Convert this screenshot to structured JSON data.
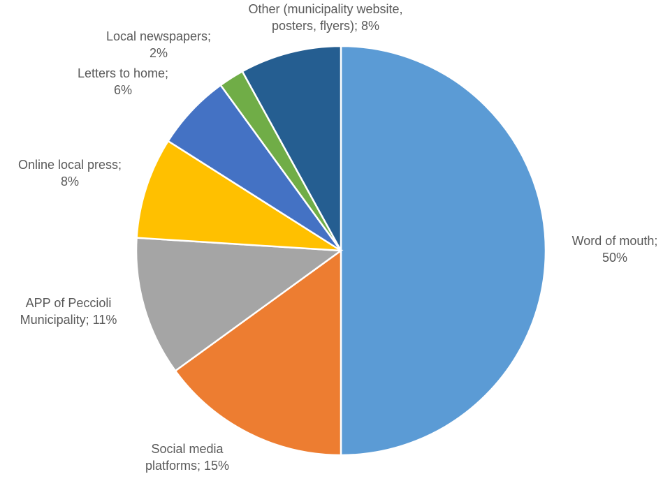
{
  "chart_data": {
    "type": "pie",
    "title": "",
    "slices": [
      {
        "label": "Word of mouth",
        "value": 50,
        "color": "#5b9bd5",
        "label_lines": [
          "Word of mouth;",
          "50%"
        ]
      },
      {
        "label": "Social media platforms",
        "value": 15,
        "color": "#ed7d31",
        "label_lines": [
          "Social media",
          "platforms; 15%"
        ]
      },
      {
        "label": "APP of Peccioli Municipality",
        "value": 11,
        "color": "#a5a5a5",
        "label_lines": [
          "APP of Peccioli",
          "Municipality; 11%"
        ]
      },
      {
        "label": "Online local press",
        "value": 8,
        "color": "#ffc000",
        "label_lines": [
          "Online local press;",
          "8%"
        ]
      },
      {
        "label": "Letters to home",
        "value": 6,
        "color": "#4472c4",
        "label_lines": [
          "Letters to home;",
          "6%"
        ]
      },
      {
        "label": "Local newspapers",
        "value": 2,
        "color": "#70ad47",
        "label_lines": [
          "Local newspapers;",
          "2%"
        ]
      },
      {
        "label": "Other (municipality website, posters, flyers)",
        "value": 8,
        "color": "#255e91",
        "label_lines": [
          "Other (municipality website,",
          "posters, flyers); 8%"
        ]
      }
    ]
  }
}
